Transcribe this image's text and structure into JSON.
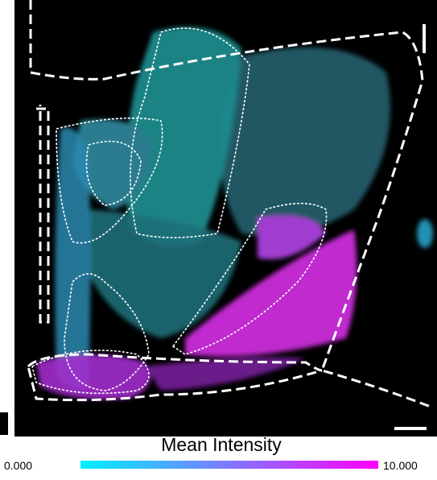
{
  "colorbar": {
    "title": "Mean Intensity",
    "min_label": "0.000",
    "max_label": "10.000",
    "colors": [
      "#00f0ff",
      "#ff00ff"
    ]
  }
}
